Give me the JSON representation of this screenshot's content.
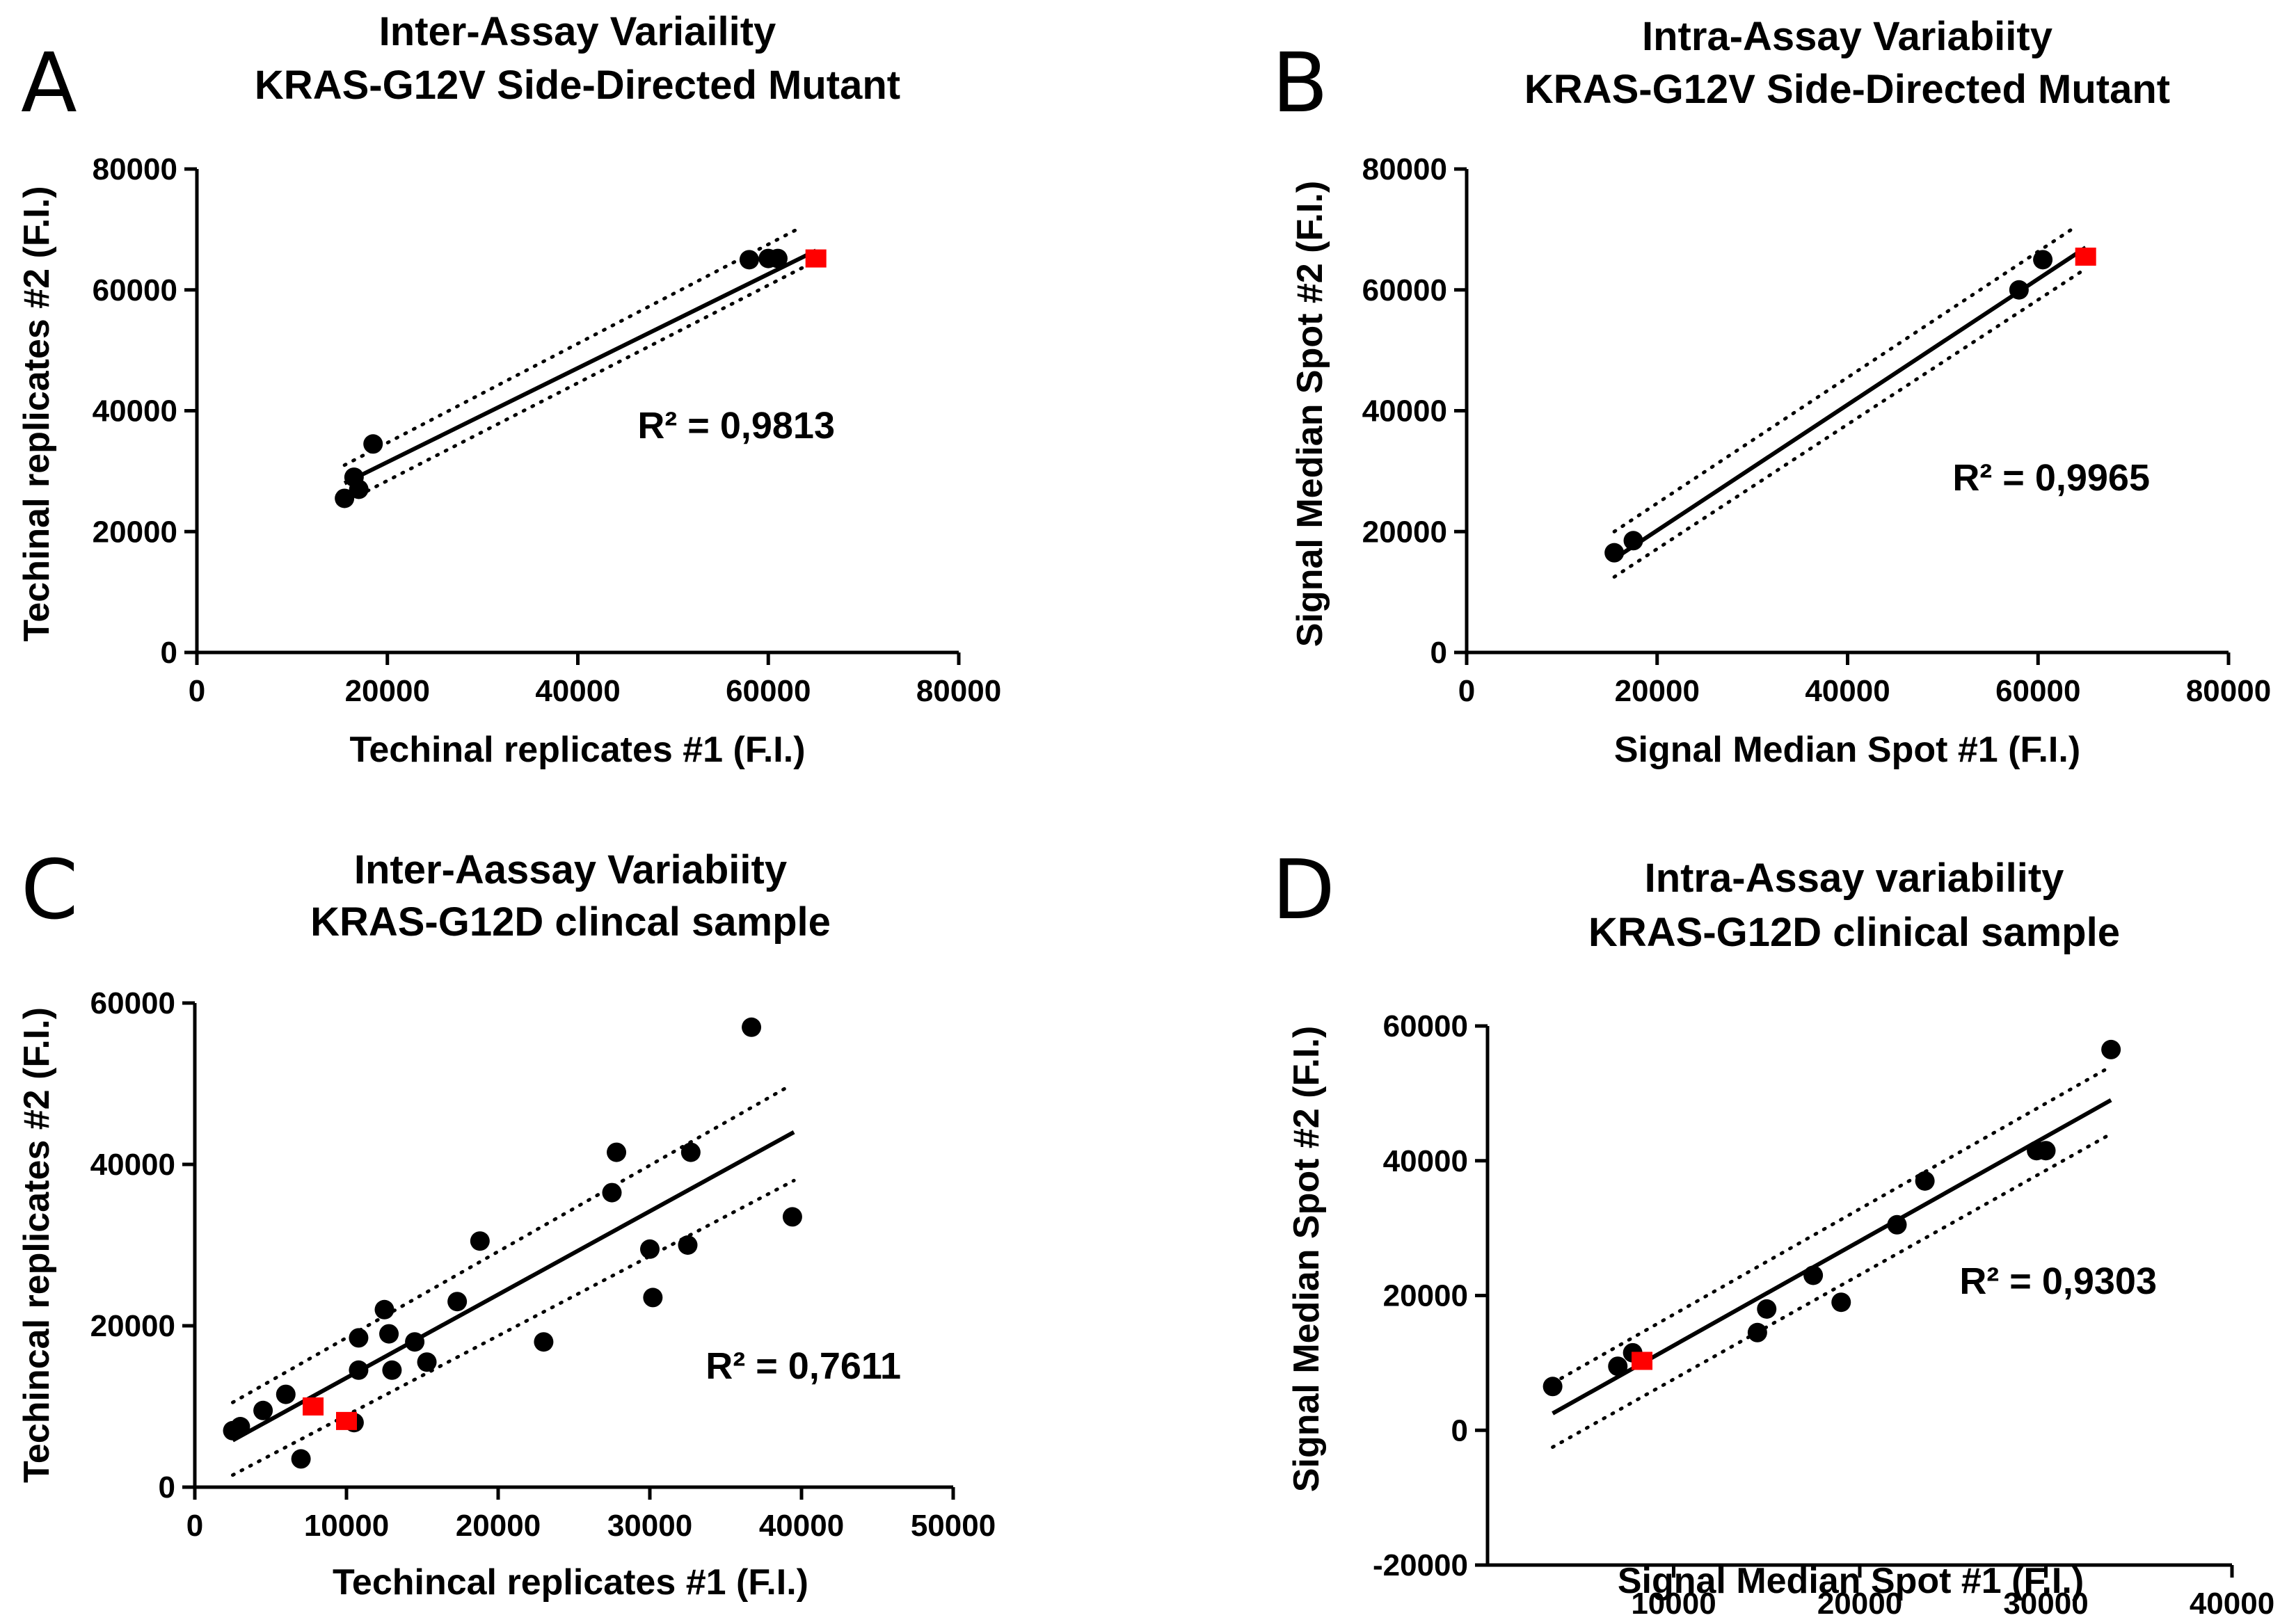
{
  "colors": {
    "point": "#000000",
    "highlight": "#ff0000",
    "line": "#000000"
  },
  "chart_data": [
    {
      "panel": "A",
      "type": "scatter",
      "title": [
        "Inter-Assay Variaility",
        "KRAS-G12V Side-Directed Mutant"
      ],
      "xlabel": "Techinal replicates #1 (F.I.)",
      "ylabel": "Techinal replicates #2 (F.I.)",
      "xlim": [
        0,
        80000
      ],
      "ylim": [
        0,
        80000
      ],
      "xticks": [
        0,
        20000,
        40000,
        60000,
        80000
      ],
      "yticks": [
        0,
        20000,
        40000,
        60000,
        80000
      ],
      "xtick_labels": [
        "0",
        "20000",
        "40000",
        "60000",
        "80000"
      ],
      "ytick_labels": [
        "0",
        "20000",
        "40000",
        "60000",
        "80000"
      ],
      "r2_label": "R² = 0,9813",
      "points": [
        [
          15500,
          25500
        ],
        [
          17000,
          27000
        ],
        [
          16500,
          29000
        ],
        [
          18500,
          34500
        ],
        [
          58000,
          65000
        ],
        [
          60000,
          65200
        ],
        [
          61000,
          65200
        ]
      ],
      "highlight_points": [
        [
          65000,
          65200
        ]
      ],
      "fit": [
        [
          15500,
          28000
        ],
        [
          65000,
          66500
        ]
      ],
      "ci_upper": [
        [
          15500,
          31000
        ],
        [
          63000,
          70000
        ]
      ],
      "ci_lower": [
        [
          17000,
          26000
        ],
        [
          64000,
          64000
        ]
      ]
    },
    {
      "panel": "B",
      "type": "scatter",
      "title": [
        "Intra-Assay Variabiity",
        "KRAS-G12V Side-Directed Mutant"
      ],
      "xlabel": "Signal Median Spot #1 (F.I.)",
      "ylabel": "Signal Median Spot #2 (F.I.)",
      "xlim": [
        0,
        80000
      ],
      "ylim": [
        0,
        80000
      ],
      "xticks": [
        0,
        20000,
        40000,
        60000,
        80000
      ],
      "yticks": [
        0,
        20000,
        40000,
        60000,
        80000
      ],
      "xtick_labels": [
        "0",
        "20000",
        "40000",
        "60000",
        "80000"
      ],
      "ytick_labels": [
        "0",
        "20000",
        "40000",
        "60000",
        "80000"
      ],
      "r2_label": "R² = 0,9965",
      "points": [
        [
          15500,
          16500
        ],
        [
          17500,
          18500
        ],
        [
          58000,
          60000
        ],
        [
          60500,
          65000
        ]
      ],
      "highlight_points": [
        [
          65000,
          65500
        ]
      ],
      "fit": [
        [
          15500,
          15500
        ],
        [
          65000,
          67000
        ]
      ],
      "ci_upper": [
        [
          15500,
          20000
        ],
        [
          64000,
          70500
        ]
      ],
      "ci_lower": [
        [
          15500,
          12500
        ],
        [
          65000,
          63500
        ]
      ]
    },
    {
      "panel": "C",
      "type": "scatter",
      "title": [
        "Inter-Aassay Variabiity",
        "KRAS-G12D clincal sample"
      ],
      "xlabel": "Techincal replicates #1 (F.I.)",
      "ylabel": "Techincal replicates #2 (F.I.)",
      "xlim": [
        0,
        50000
      ],
      "ylim": [
        0,
        60000
      ],
      "xticks": [
        0,
        10000,
        20000,
        30000,
        40000,
        50000
      ],
      "yticks": [
        0,
        20000,
        40000,
        60000
      ],
      "xtick_labels": [
        "0",
        "10000",
        "20000",
        "30000",
        "40000",
        "50000"
      ],
      "ytick_labels": [
        "0",
        "20000",
        "40000",
        "60000"
      ],
      "r2_label": "R² = 0,7611",
      "points": [
        [
          2500,
          7000
        ],
        [
          3000,
          7500
        ],
        [
          4500,
          9500
        ],
        [
          6000,
          11500
        ],
        [
          7000,
          3500
        ],
        [
          10500,
          8000
        ],
        [
          10800,
          14500
        ],
        [
          10800,
          18500
        ],
        [
          12500,
          22000
        ],
        [
          12800,
          19000
        ],
        [
          13000,
          14500
        ],
        [
          14500,
          18000
        ],
        [
          15300,
          15500
        ],
        [
          17300,
          23000
        ],
        [
          18800,
          30500
        ],
        [
          23000,
          18000
        ],
        [
          27500,
          36500
        ],
        [
          27800,
          41500
        ],
        [
          30000,
          29500
        ],
        [
          30200,
          23500
        ],
        [
          32500,
          30000
        ],
        [
          32700,
          41500
        ],
        [
          36700,
          57000
        ],
        [
          39400,
          33500
        ]
      ],
      "highlight_points": [
        [
          7800,
          10000
        ],
        [
          10000,
          8200
        ]
      ],
      "fit": [
        [
          2500,
          5800
        ],
        [
          39500,
          44000
        ]
      ],
      "ci_upper": [
        [
          2500,
          10500
        ],
        [
          39000,
          49500
        ]
      ],
      "ci_lower": [
        [
          2500,
          1500
        ],
        [
          39500,
          38000
        ]
      ]
    },
    {
      "panel": "D",
      "type": "scatter",
      "title": [
        "Intra-Assay variability",
        "KRAS-G12D clinical sample"
      ],
      "xlabel": "Signal Median Spot #1 (F.I.)",
      "ylabel": "Signal Median Spot #2 (F.I.)",
      "xlim": [
        0,
        40000
      ],
      "ylim": [
        -20000,
        60000
      ],
      "xticks": [
        10000,
        20000,
        30000,
        40000
      ],
      "yticks": [
        -20000,
        0,
        20000,
        40000,
        60000
      ],
      "xtick_labels": [
        "10000",
        "20000",
        "30000",
        "40000"
      ],
      "ytick_labels": [
        "-20000",
        "0",
        "20000",
        "40000",
        "60000"
      ],
      "r2_label": "R² = 0,9303",
      "points": [
        [
          3500,
          6500
        ],
        [
          7000,
          9500
        ],
        [
          7800,
          11500
        ],
        [
          14500,
          14500
        ],
        [
          15000,
          18000
        ],
        [
          17500,
          23000
        ],
        [
          19000,
          19000
        ],
        [
          22000,
          30500
        ],
        [
          23500,
          37000
        ],
        [
          29500,
          41500
        ],
        [
          30000,
          41500
        ],
        [
          33500,
          56500
        ]
      ],
      "highlight_points": [
        [
          8300,
          10300
        ]
      ],
      "fit": [
        [
          3500,
          2500
        ],
        [
          33500,
          49000
        ]
      ],
      "ci_upper": [
        [
          3500,
          7000
        ],
        [
          33500,
          54000
        ]
      ],
      "ci_lower": [
        [
          3500,
          -2500
        ],
        [
          33500,
          44000
        ]
      ]
    }
  ]
}
